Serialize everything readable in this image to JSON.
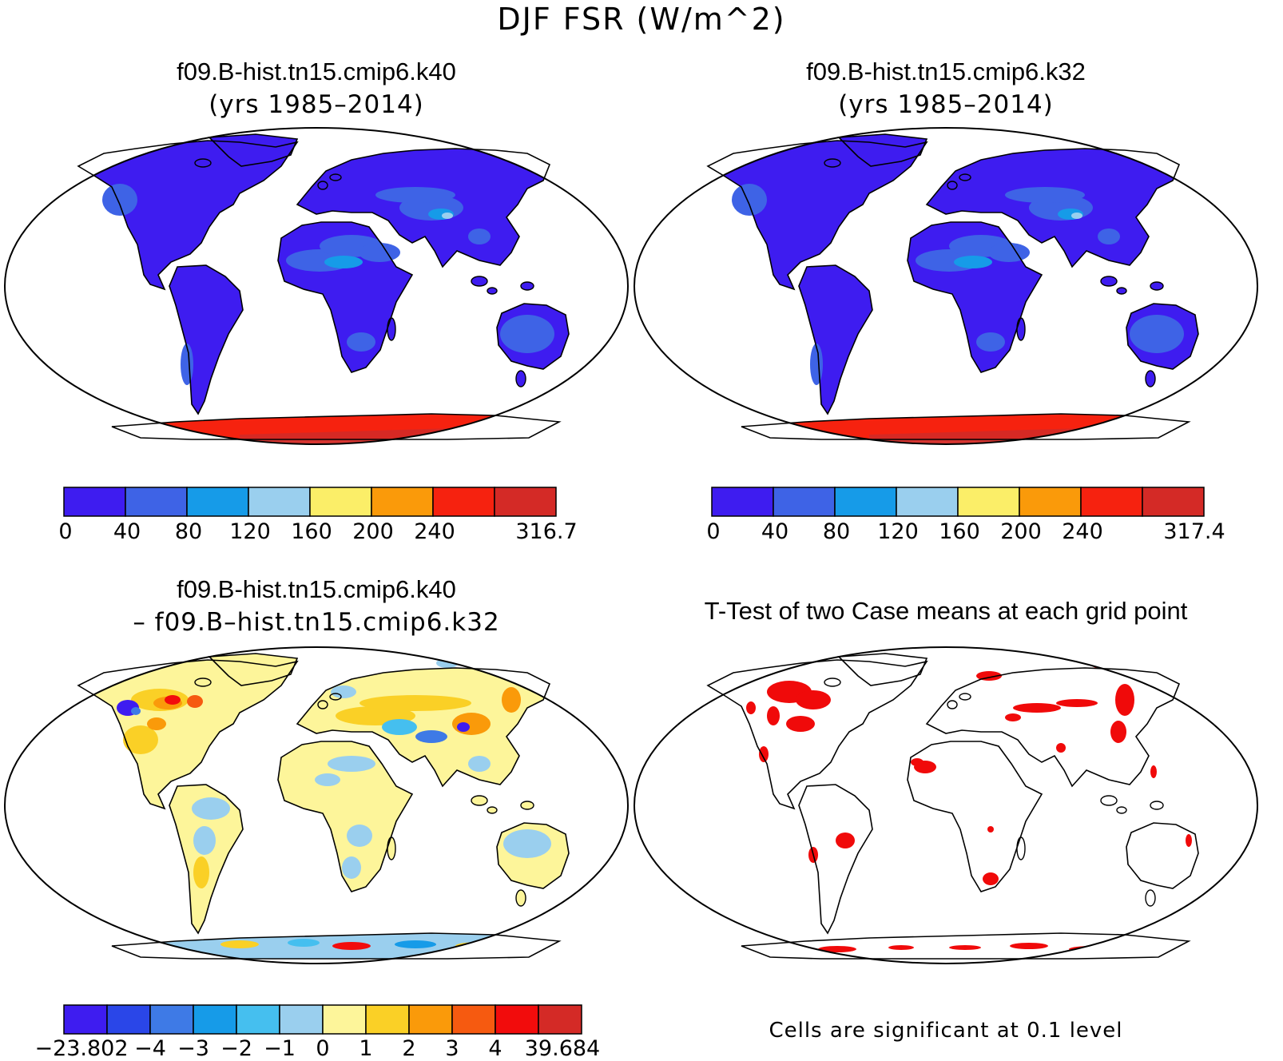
{
  "title": "DJF FSR (W/m^2)",
  "panels": [
    {
      "title": "f09.B-hist.tn15.cmip6.k40",
      "subtitle": "(yrs 1985–2014)",
      "colorbar": {
        "colors": [
          "#3e1cf0",
          "#3e63e6",
          "#169be8",
          "#9acfee",
          "#fbee68",
          "#fa9a0a",
          "#f6220f",
          "#d42a26"
        ],
        "tick_labels": [
          "0",
          "40",
          "80",
          "120",
          "160",
          "200",
          "240",
          "316.7"
        ]
      }
    },
    {
      "title": "f09.B-hist.tn15.cmip6.k32",
      "subtitle": "(yrs 1985–2014)",
      "colorbar": {
        "colors": [
          "#3e1cf0",
          "#3e63e6",
          "#169be8",
          "#9acfee",
          "#fbee68",
          "#fa9a0a",
          "#f6220f",
          "#d42a26"
        ],
        "tick_labels": [
          "0",
          "40",
          "80",
          "120",
          "160",
          "200",
          "240",
          "317.4"
        ]
      }
    },
    {
      "title": "f09.B-hist.tn15.cmip6.k40",
      "subtitle": "– f09.B–hist.tn15.cmip6.k32",
      "colorbar": {
        "colors": [
          "#3e1cf0",
          "#2a46e8",
          "#3e7ae6",
          "#169be8",
          "#45bfef",
          "#9acfee",
          "#fdf59a",
          "#fad026",
          "#fa9a0a",
          "#f65a10",
          "#f20c0c",
          "#d42a26"
        ],
        "tick_labels": [
          "−23.802",
          "−4",
          "−3",
          "−2",
          "−1",
          "0",
          "1",
          "2",
          "3",
          "4",
          "39.684"
        ]
      }
    },
    {
      "title": "T-Test of two Case means at each grid point",
      "footnote": "Cells are significant at 0.1 level",
      "highlight_color": "#f00a0a"
    }
  ]
}
